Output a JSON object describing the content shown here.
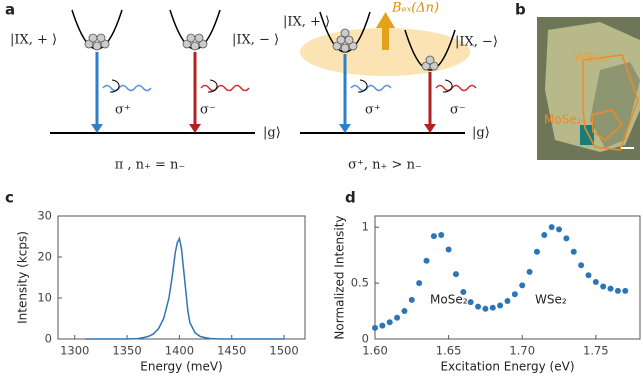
{
  "panel_labels": [
    "a",
    "b",
    "c",
    "d"
  ],
  "diagram": {
    "left": {
      "state_plus": "|IX, + ⟩",
      "state_minus": "|IX, − ⟩",
      "sigma_plus": "σ⁺",
      "sigma_minus": "σ⁻",
      "ground": "|g⟩",
      "caption": "π , n₊ = n₋"
    },
    "right": {
      "state_plus": "|IX, + ⟩",
      "state_minus": "|IX, −⟩",
      "field": "Bₑₓ(Δn)",
      "sigma_plus": "σ⁺",
      "sigma_minus": "σ⁻",
      "ground": "|g⟩",
      "caption": "σ⁺, n₊ > n₋"
    }
  },
  "micrograph": {
    "wse2": "WSe₂",
    "mose2": "MoSe₂"
  },
  "chart_data": [
    {
      "type": "line",
      "xlabel": "Energy (meV)",
      "ylabel": "Intensity (kcps)",
      "color": "#2e75b6",
      "x": [
        1310,
        1320,
        1330,
        1340,
        1350,
        1360,
        1365,
        1370,
        1375,
        1380,
        1385,
        1390,
        1393,
        1396,
        1398,
        1400,
        1402,
        1404,
        1406,
        1408,
        1410,
        1415,
        1420,
        1425,
        1430,
        1440,
        1450,
        1460,
        1470,
        1480,
        1490,
        1500
      ],
      "values": [
        0,
        0,
        0,
        0,
        0,
        0.1,
        0.3,
        0.6,
        1.2,
        2.5,
        5,
        10,
        15,
        21,
        23.5,
        24.5,
        22,
        17,
        12,
        7,
        4,
        1.5,
        0.6,
        0.3,
        0.1,
        0,
        0,
        0,
        0,
        0,
        0,
        0
      ],
      "xlim": [
        1284,
        1520
      ],
      "xticks": [
        1300,
        1350,
        1400,
        1450,
        1500
      ],
      "ylim": [
        0,
        30
      ],
      "yticks": [
        0,
        10,
        20,
        30
      ]
    },
    {
      "type": "scatter",
      "xlabel": "Excitation Energy (eV)",
      "ylabel": "Normalized Intensity",
      "color": "#2e75b6",
      "annotations": [
        "MoSe₂",
        "WSe₂"
      ],
      "x": [
        1.6,
        1.605,
        1.61,
        1.615,
        1.62,
        1.625,
        1.63,
        1.635,
        1.64,
        1.645,
        1.65,
        1.655,
        1.66,
        1.665,
        1.67,
        1.675,
        1.68,
        1.685,
        1.69,
        1.695,
        1.7,
        1.705,
        1.71,
        1.715,
        1.72,
        1.725,
        1.73,
        1.735,
        1.74,
        1.745,
        1.75,
        1.755,
        1.76,
        1.765,
        1.77
      ],
      "values": [
        0.1,
        0.12,
        0.15,
        0.19,
        0.25,
        0.35,
        0.5,
        0.7,
        0.92,
        0.93,
        0.8,
        0.58,
        0.42,
        0.33,
        0.29,
        0.27,
        0.28,
        0.3,
        0.34,
        0.4,
        0.48,
        0.6,
        0.78,
        0.93,
        1,
        0.98,
        0.9,
        0.78,
        0.66,
        0.57,
        0.51,
        0.47,
        0.45,
        0.43,
        0.43
      ],
      "xlim": [
        1.6,
        1.78
      ],
      "xticks": [
        {
          "value": 1.6,
          "label": "1.60"
        },
        1.65,
        {
          "value": 1.7,
          "label": "1.70"
        },
        1.75
      ],
      "ylim": [
        0,
        1.1
      ],
      "yticks": [
        0,
        0.5,
        1
      ]
    }
  ]
}
